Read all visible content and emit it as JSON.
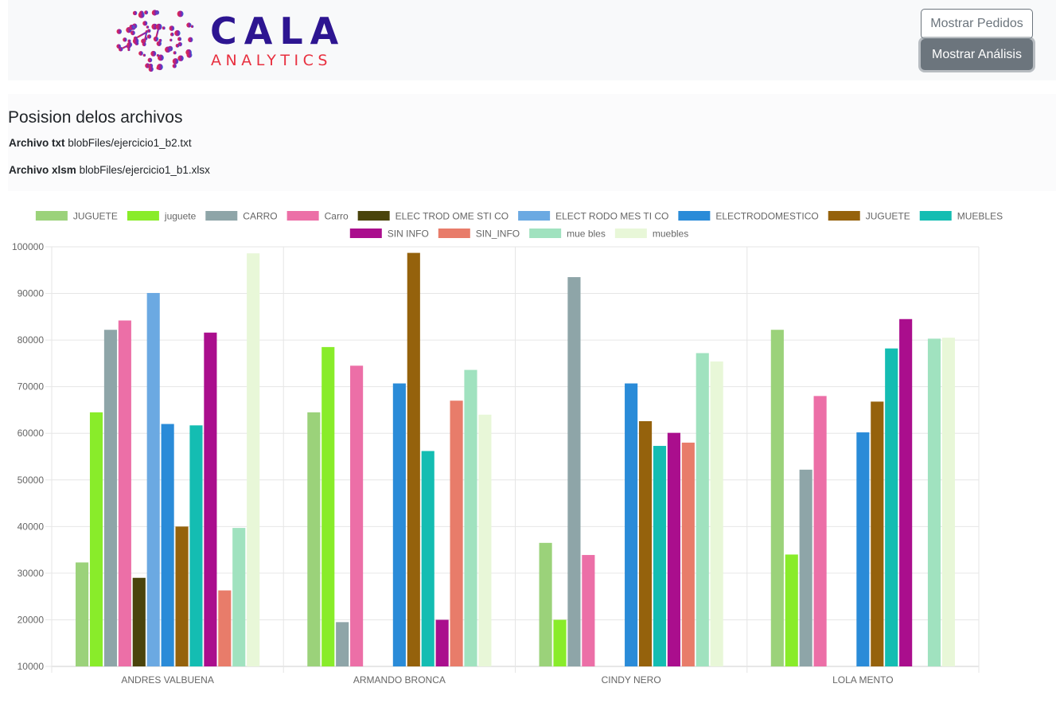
{
  "logo": {
    "word": "CALA",
    "sub": "ANALYTICS"
  },
  "buttons": {
    "pedidos": "Mostrar Pedidos",
    "analisis": "Mostrar Análisis"
  },
  "info": {
    "title": "Posision delos archivos",
    "txt_label": "Archivo txt",
    "txt_path": "blobFiles/ejercicio1_b2.txt",
    "xlsm_label": "Archivo xlsm",
    "xlsm_path": "blobFiles/ejercicio1_b1.xlsx"
  },
  "chart_data": {
    "type": "bar",
    "categories": [
      "ANDRES VALBUENA",
      "ARMANDO BRONCA",
      "CINDY NERO",
      "LOLA MENTO"
    ],
    "ylim": [
      10000,
      100000
    ],
    "yticks": [
      "100000",
      "90000",
      "80000",
      "70000",
      "60000",
      "50000",
      "40000",
      "30000",
      "20000",
      "10000"
    ],
    "grid": true,
    "legend_position": "top",
    "series": [
      {
        "name": "JUGUETE",
        "color": "#9bd27a",
        "values": [
          32300,
          64500,
          36500,
          82200
        ]
      },
      {
        "name": "juguete",
        "color": "#89ec2a",
        "values": [
          64500,
          78500,
          20000,
          34000
        ]
      },
      {
        "name": "CARRO",
        "color": "#8ea5a8",
        "values": [
          82200,
          19500,
          93500,
          52200
        ]
      },
      {
        "name": "Carro",
        "color": "#ec6fa7",
        "values": [
          84200,
          74500,
          33900,
          68000
        ]
      },
      {
        "name": "ELEC TROD OME STI CO",
        "color": "#4a440c",
        "values": [
          29000,
          null,
          null,
          null
        ]
      },
      {
        "name": "ELECT RODO MES TI CO",
        "color": "#6ba9e2",
        "values": [
          90100,
          null,
          null,
          null
        ]
      },
      {
        "name": "ELECTRODOMESTICO",
        "color": "#2a8bd8",
        "values": [
          62000,
          70700,
          70700,
          60200
        ]
      },
      {
        "name": "JUGUETE",
        "color": "#95620c",
        "values": [
          40000,
          98700,
          62600,
          66800
        ]
      },
      {
        "name": "MUEBLES",
        "color": "#14bdb2",
        "values": [
          61700,
          56200,
          57300,
          78200
        ]
      },
      {
        "name": "SIN INFO",
        "color": "#aa0e8d",
        "values": [
          81600,
          20000,
          60100,
          84500
        ]
      },
      {
        "name": "SIN_INFO",
        "color": "#e87c6a",
        "values": [
          26300,
          67000,
          58000,
          null
        ]
      },
      {
        "name": "mue bles",
        "color": "#a0e2bf",
        "values": [
          39700,
          73600,
          77200,
          80300
        ]
      },
      {
        "name": "muebles",
        "color": "#e8f7d8",
        "values": [
          98600,
          64000,
          75400,
          80500
        ]
      }
    ]
  }
}
